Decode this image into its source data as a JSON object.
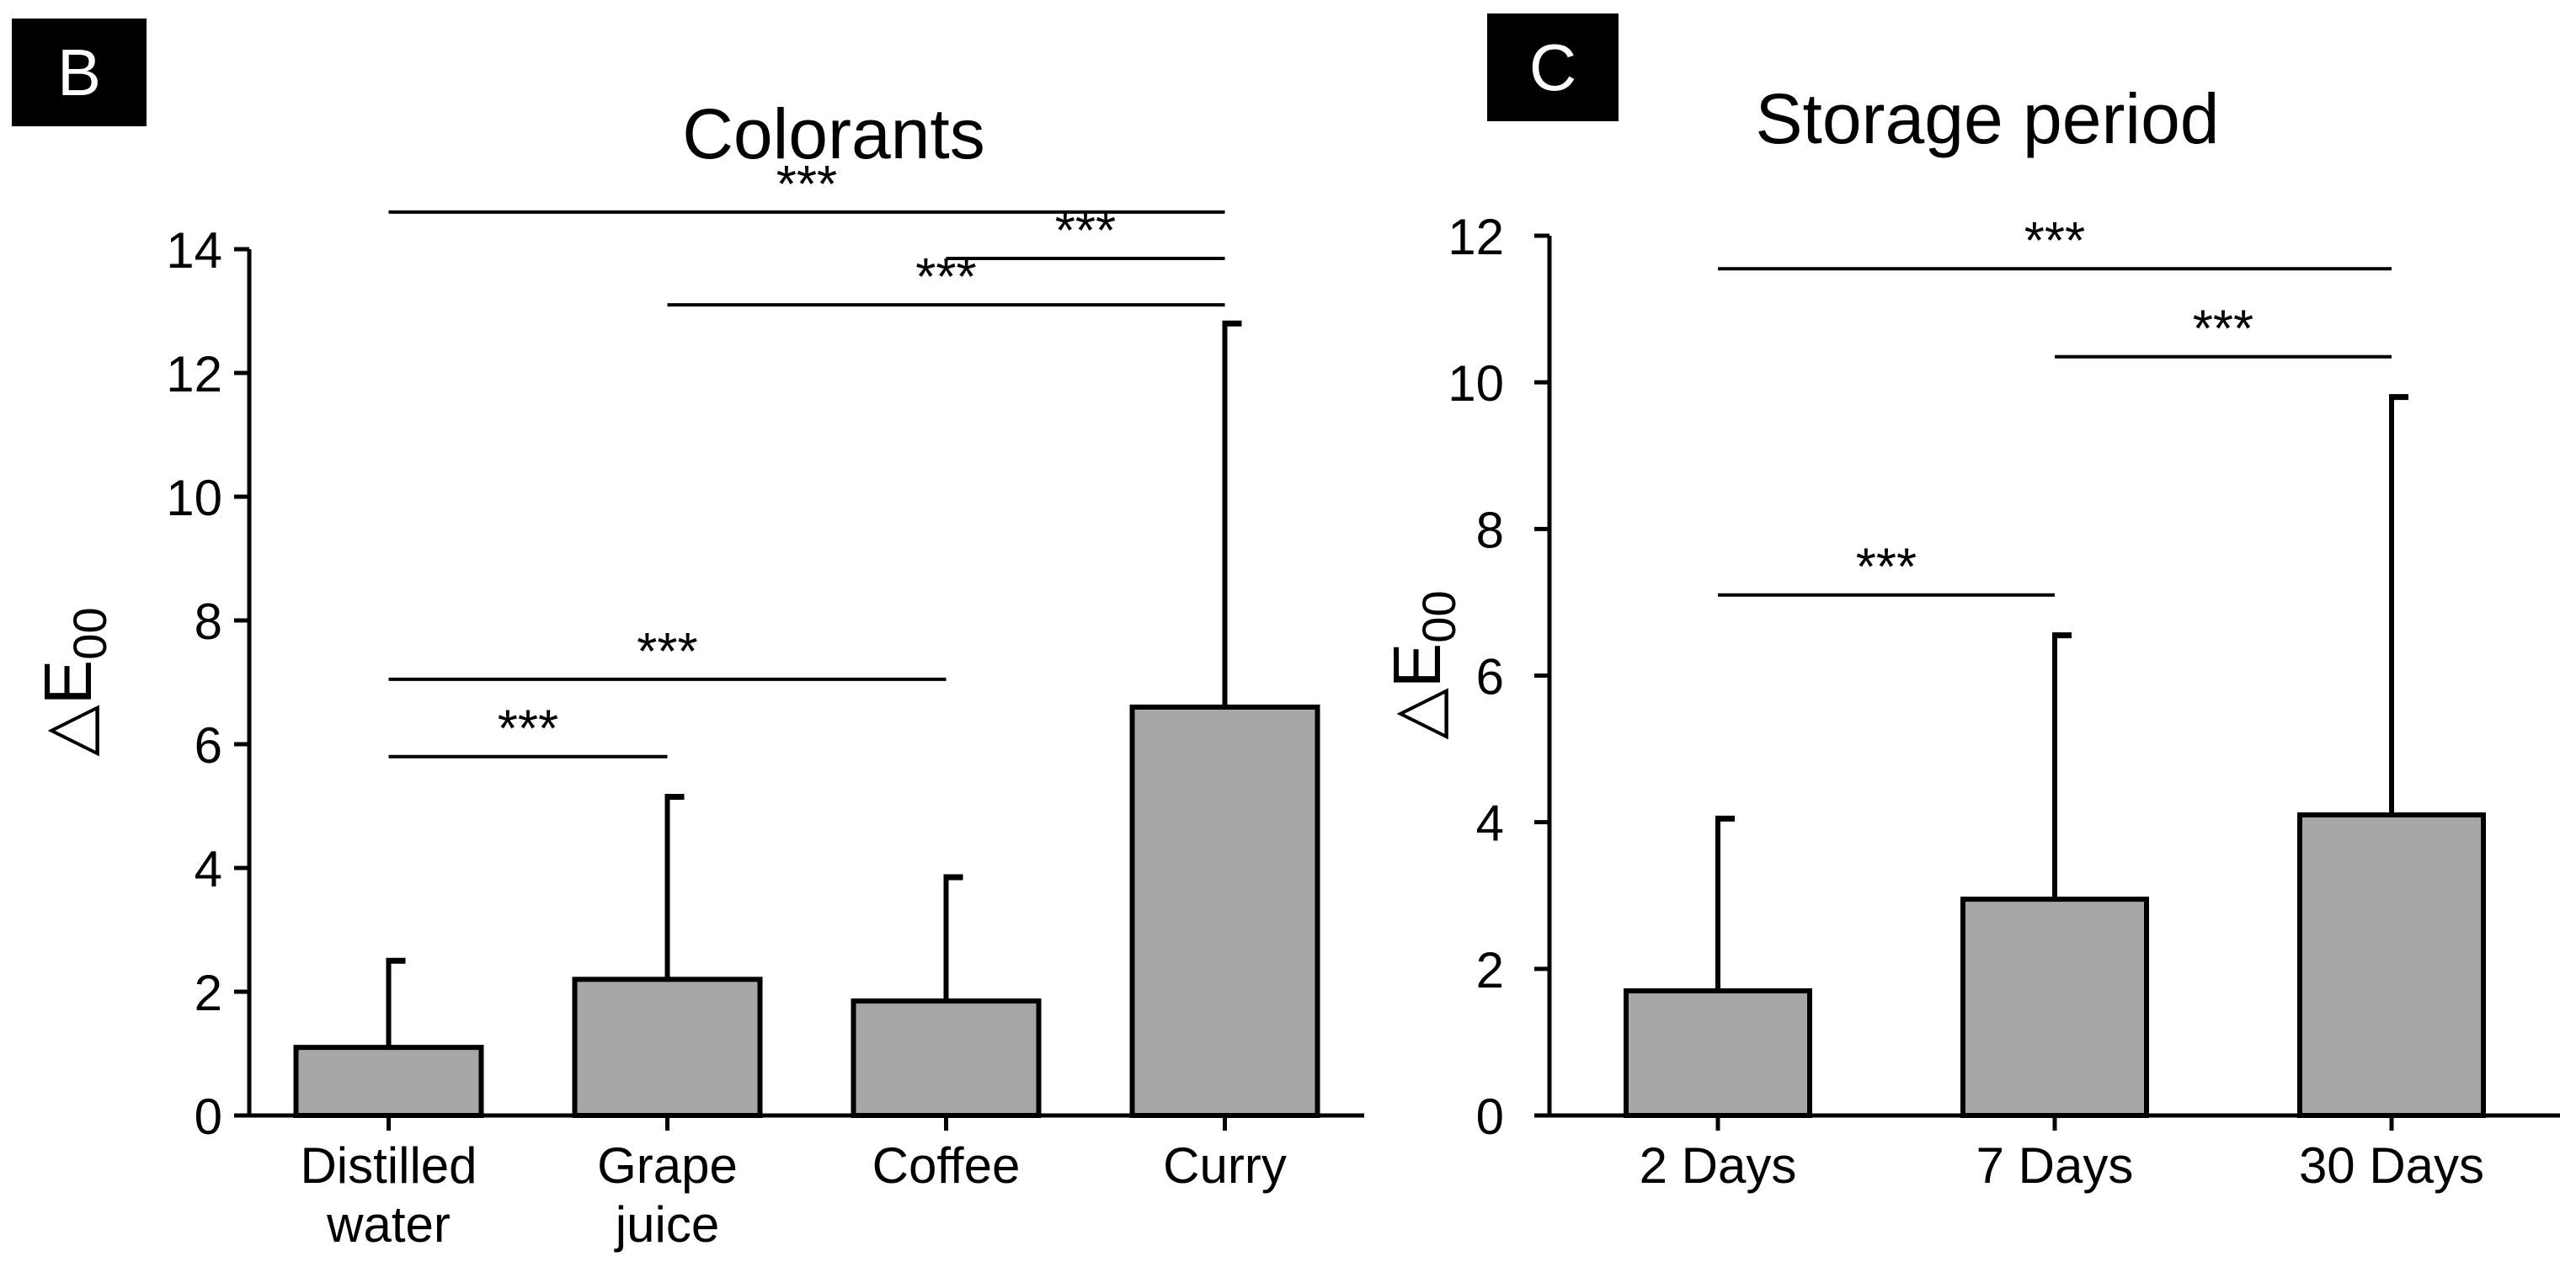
{
  "panels": {
    "b": {
      "label": "B"
    },
    "c": {
      "label": "C"
    }
  },
  "chart_data": [
    {
      "panel": "B",
      "type": "bar",
      "title": "Colorants",
      "ylabel": "△E",
      "ylabel_subscript": "00",
      "ylim": [
        0,
        14
      ],
      "yticks": [
        0,
        2,
        4,
        6,
        8,
        10,
        12,
        14
      ],
      "categories": [
        "Distilled\nwater",
        "Grape\njuice",
        "Coffee",
        "Curry"
      ],
      "values": [
        1.1,
        2.2,
        1.85,
        6.6
      ],
      "error_upper": [
        2.5,
        5.15,
        3.85,
        12.8
      ],
      "bar_color": "#a6a6a6",
      "significance": [
        {
          "from": 0,
          "to": 1,
          "label": "***",
          "y": 5.8
        },
        {
          "from": 0,
          "to": 2,
          "label": "***",
          "y": 7.05
        },
        {
          "from": 1,
          "to": 3,
          "label": "***",
          "y": 13.1
        },
        {
          "from": 2,
          "to": 3,
          "label": "***",
          "y": 13.85
        },
        {
          "from": 0,
          "to": 3,
          "label": "***",
          "y": 14.6
        }
      ]
    },
    {
      "panel": "C",
      "type": "bar",
      "title": "Storage period",
      "ylabel": "△E",
      "ylabel_subscript": "00",
      "ylim": [
        0,
        12
      ],
      "yticks": [
        0,
        2,
        4,
        6,
        8,
        10,
        12
      ],
      "categories": [
        "2 Days",
        "7 Days",
        "30 Days"
      ],
      "values": [
        1.7,
        2.95,
        4.1
      ],
      "error_upper": [
        4.05,
        6.55,
        9.8
      ],
      "bar_color": "#a6a6a6",
      "significance": [
        {
          "from": 0,
          "to": 1,
          "label": "***",
          "y": 7.1
        },
        {
          "from": 1,
          "to": 2,
          "label": "***",
          "y": 10.35
        },
        {
          "from": 0,
          "to": 2,
          "label": "***",
          "y": 11.55
        }
      ]
    }
  ]
}
